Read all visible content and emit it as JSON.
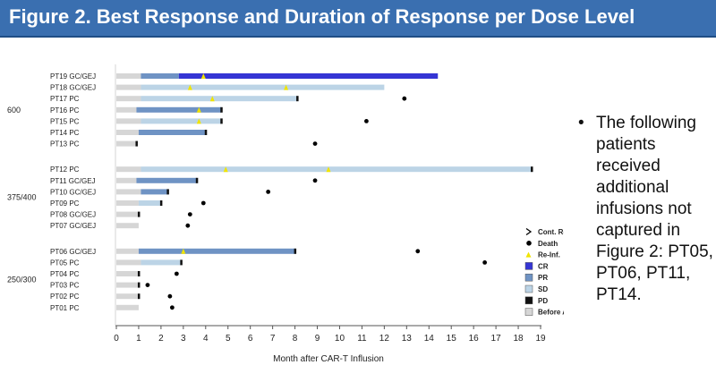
{
  "header": {
    "title": "Figure 2. Best Response and Duration of Response per Dose Level"
  },
  "bullet": {
    "text": "The following patients received additional infusions not captured in Figure 2: PT05, PT06, PT11, PT14."
  },
  "chart_data": {
    "type": "bar",
    "xlabel": "Month after CAR-T Influsion",
    "xlim": [
      0,
      19
    ],
    "xticks": [
      0,
      1,
      2,
      3,
      4,
      5,
      6,
      7,
      8,
      9,
      10,
      11,
      12,
      13,
      14,
      15,
      16,
      17,
      18,
      19
    ],
    "groups": [
      {
        "label": "600",
        "patients": [
          {
            "id": "PT19 GC/GEJ",
            "segments": [
              {
                "type": "Before Asmt.",
                "from": 0,
                "to": 1.1
              },
              {
                "type": "PR",
                "from": 1.1,
                "to": 2.8
              },
              {
                "type": "CR",
                "from": 2.8,
                "to": 14.4
              }
            ],
            "end_pd": false,
            "reinf": [
              3.9
            ],
            "death": null
          },
          {
            "id": "PT18 GC/GEJ",
            "segments": [
              {
                "type": "Before Asmt.",
                "from": 0,
                "to": 1.1
              },
              {
                "type": "SD",
                "from": 1.1,
                "to": 12.0
              }
            ],
            "end_pd": false,
            "reinf": [
              3.3,
              7.6
            ],
            "death": null
          },
          {
            "id": "PT17 PC",
            "segments": [
              {
                "type": "Before Asmt.",
                "from": 0,
                "to": 1.1
              },
              {
                "type": "SD",
                "from": 1.1,
                "to": 8.1
              }
            ],
            "end_pd": true,
            "reinf": [
              4.3
            ],
            "death": 12.9
          },
          {
            "id": "PT16 PC",
            "segments": [
              {
                "type": "Before Asmt.",
                "from": 0,
                "to": 0.9
              },
              {
                "type": "PR",
                "from": 0.9,
                "to": 4.7
              }
            ],
            "end_pd": true,
            "reinf": [
              3.7
            ],
            "death": null
          },
          {
            "id": "PT15 PC",
            "segments": [
              {
                "type": "Before Asmt.",
                "from": 0,
                "to": 1.1
              },
              {
                "type": "SD",
                "from": 1.1,
                "to": 4.7
              }
            ],
            "end_pd": true,
            "reinf": [
              3.7
            ],
            "death": 11.2
          },
          {
            "id": "PT14 PC",
            "segments": [
              {
                "type": "Before Asmt.",
                "from": 0,
                "to": 1.0
              },
              {
                "type": "PR",
                "from": 1.0,
                "to": 4.0
              }
            ],
            "end_pd": true,
            "reinf": [],
            "death": null
          },
          {
            "id": "PT13 PC",
            "segments": [
              {
                "type": "Before Asmt.",
                "from": 0,
                "to": 0.9
              }
            ],
            "end_pd": true,
            "reinf": [],
            "death": 8.9
          }
        ]
      },
      {
        "label": "375/400",
        "patients": [
          {
            "id": "PT12 PC",
            "segments": [
              {
                "type": "Before Asmt.",
                "from": 0,
                "to": 1.1
              },
              {
                "type": "SD",
                "from": 1.1,
                "to": 18.6
              }
            ],
            "end_pd": true,
            "reinf": [
              4.9,
              9.5
            ],
            "death": null
          },
          {
            "id": "PT11 GC/GEJ",
            "segments": [
              {
                "type": "Before Asmt.",
                "from": 0,
                "to": 0.9
              },
              {
                "type": "PR",
                "from": 0.9,
                "to": 3.6
              }
            ],
            "end_pd": true,
            "reinf": [],
            "death": 8.9
          },
          {
            "id": "PT10 GC/GEJ",
            "segments": [
              {
                "type": "Before Asmt.",
                "from": 0,
                "to": 1.1
              },
              {
                "type": "PR",
                "from": 1.1,
                "to": 2.3
              }
            ],
            "end_pd": true,
            "reinf": [],
            "death": 6.8
          },
          {
            "id": "PT09 PC",
            "segments": [
              {
                "type": "Before Asmt.",
                "from": 0,
                "to": 1.0
              },
              {
                "type": "SD",
                "from": 1.0,
                "to": 2.0
              }
            ],
            "end_pd": true,
            "reinf": [],
            "death": 3.9
          },
          {
            "id": "PT08 GC/GEJ",
            "segments": [
              {
                "type": "Before Asmt.",
                "from": 0,
                "to": 1.0
              }
            ],
            "end_pd": true,
            "reinf": [],
            "death": 3.3
          },
          {
            "id": "PT07 GC/GEJ",
            "segments": [
              {
                "type": "Before Asmt.",
                "from": 0,
                "to": 1.0
              }
            ],
            "end_pd": false,
            "reinf": [],
            "death": 3.2
          }
        ]
      },
      {
        "label": "250/300",
        "patients": [
          {
            "id": "PT06 GC/GEJ",
            "segments": [
              {
                "type": "Before Asmt.",
                "from": 0,
                "to": 1.0
              },
              {
                "type": "PR",
                "from": 1.0,
                "to": 8.0
              }
            ],
            "end_pd": true,
            "reinf": [
              3.0
            ],
            "death": 13.5
          },
          {
            "id": "PT05 PC",
            "segments": [
              {
                "type": "Before Asmt.",
                "from": 0,
                "to": 1.1
              },
              {
                "type": "SD",
                "from": 1.1,
                "to": 2.9
              }
            ],
            "end_pd": true,
            "reinf": [],
            "death": 16.5
          },
          {
            "id": "PT04 PC",
            "segments": [
              {
                "type": "Before Asmt.",
                "from": 0,
                "to": 1.0
              }
            ],
            "end_pd": true,
            "reinf": [],
            "death": 2.7
          },
          {
            "id": "PT03 PC",
            "segments": [
              {
                "type": "Before Asmt.",
                "from": 0,
                "to": 1.0
              }
            ],
            "end_pd": true,
            "reinf": [],
            "death": 1.4
          },
          {
            "id": "PT02 PC",
            "segments": [
              {
                "type": "Before Asmt.",
                "from": 0,
                "to": 1.0
              }
            ],
            "end_pd": true,
            "reinf": [],
            "death": 2.4
          },
          {
            "id": "PT01 PC",
            "segments": [
              {
                "type": "Before Asmt.",
                "from": 0,
                "to": 1.0
              }
            ],
            "end_pd": false,
            "reinf": [],
            "death": 2.5
          }
        ]
      }
    ],
    "legend": {
      "placement": "bottom-right",
      "items": [
        {
          "key": "cont",
          "marker": "chevron",
          "label": "Cont. Resp."
        },
        {
          "key": "death",
          "marker": "dot",
          "label": "Death"
        },
        {
          "key": "reinf",
          "marker": "triangle",
          "label": "Re-Inf."
        },
        {
          "key": "CR",
          "marker": "box",
          "label": "CR"
        },
        {
          "key": "PR",
          "marker": "box",
          "label": "PR"
        },
        {
          "key": "SD",
          "marker": "box",
          "label": "SD"
        },
        {
          "key": "PD",
          "marker": "box",
          "label": "PD"
        },
        {
          "key": "Before Asmt.",
          "marker": "box",
          "label": "Before Asmt."
        }
      ]
    },
    "colors": {
      "CR": "#3535d4",
      "PR": "#6f93c4",
      "SD": "#bcd4e6",
      "PD": "#111111",
      "Before Asmt.": "#d6d6d6",
      "reinf": "#f0e400",
      "death": "#000000",
      "axis": "#555555"
    }
  }
}
